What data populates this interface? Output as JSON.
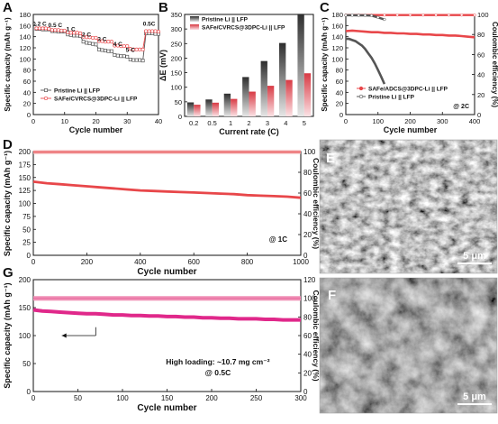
{
  "colors": {
    "pristine": "#555555",
    "safe": "#e8474a",
    "safe_dark": "#c42c2e",
    "magenta": "#e0288a",
    "magenta_light": "#f08fb5",
    "bar_gray_top": "#333333",
    "bar_gray_bottom": "#e4e4e4",
    "bar_pink_top": "#d83a44",
    "bar_pink_bottom": "#fbe0e3"
  },
  "chart_data": [
    {
      "panel": "A",
      "type": "line",
      "xlabel": "Cycle number",
      "ylabel": "Specific capacity (mAh g⁻¹)",
      "xlim": [
        0,
        40
      ],
      "ylim": [
        0,
        180
      ],
      "xticks": [
        0,
        10,
        20,
        30,
        40
      ],
      "yticks": [
        0,
        20,
        40,
        60,
        80,
        100,
        120,
        140,
        160,
        180
      ],
      "rate_labels": [
        {
          "text": "0.2 C",
          "x": 2,
          "y": 160
        },
        {
          "text": "0.5 C",
          "x": 7,
          "y": 157
        },
        {
          "text": "1 C",
          "x": 12,
          "y": 150
        },
        {
          "text": "2 C",
          "x": 17,
          "y": 140
        },
        {
          "text": "3 C",
          "x": 22,
          "y": 132
        },
        {
          "text": "4 C",
          "x": 27,
          "y": 123
        },
        {
          "text": "5 C",
          "x": 31,
          "y": 113
        },
        {
          "text": "0.5C",
          "x": 37,
          "y": 160
        }
      ],
      "legend": "bottom-left",
      "series": [
        {
          "name": "Pristine Li || LFP",
          "color": "#555555",
          "x": [
            1,
            2,
            3,
            4,
            5,
            6,
            7,
            8,
            9,
            10,
            11,
            12,
            13,
            14,
            15,
            16,
            17,
            18,
            19,
            20,
            21,
            22,
            23,
            24,
            25,
            26,
            27,
            28,
            29,
            30,
            31,
            32,
            33,
            34,
            35,
            36,
            37,
            38,
            39,
            40
          ],
          "y": [
            154,
            154,
            153,
            153,
            153,
            150,
            150,
            149,
            149,
            149,
            144,
            143,
            142,
            142,
            141,
            131,
            129,
            128,
            127,
            126,
            117,
            116,
            115,
            114,
            114,
            107,
            106,
            105,
            105,
            104,
            99,
            98,
            98,
            98,
            97,
            146,
            146,
            146,
            145,
            145
          ]
        },
        {
          "name": "SAFe/CVRCS@3DPC-Li || LFP",
          "color": "#e8474a",
          "x": [
            1,
            2,
            3,
            4,
            5,
            6,
            7,
            8,
            9,
            10,
            11,
            12,
            13,
            14,
            15,
            16,
            17,
            18,
            19,
            20,
            21,
            22,
            23,
            24,
            25,
            26,
            27,
            28,
            29,
            30,
            31,
            32,
            33,
            34,
            35,
            36,
            37,
            38,
            39,
            40
          ],
          "y": [
            155,
            155,
            155,
            155,
            154,
            152,
            152,
            152,
            151,
            151,
            148,
            147,
            147,
            147,
            146,
            140,
            139,
            139,
            138,
            138,
            132,
            132,
            131,
            131,
            131,
            124,
            124,
            123,
            123,
            123,
            118,
            117,
            117,
            117,
            117,
            150,
            150,
            150,
            150,
            149
          ]
        }
      ]
    },
    {
      "panel": "B",
      "type": "bar",
      "xlabel": "Current rate (C)",
      "ylabel": "ΔE (mV)",
      "categories": [
        "0.2",
        "0.5",
        "1",
        "2",
        "3",
        "4",
        "5"
      ],
      "ylim": [
        0,
        350
      ],
      "yticks": [
        0,
        50,
        100,
        150,
        200,
        250,
        300,
        350
      ],
      "legend": "top-left",
      "series": [
        {
          "name": "Pristine Li || LFP",
          "values": [
            48,
            58,
            78,
            135,
            190,
            252,
            352
          ]
        },
        {
          "name": "SAFe/CVRCS@3DPC-Li || LFP",
          "values": [
            40,
            47,
            60,
            85,
            105,
            125,
            148
          ]
        }
      ]
    },
    {
      "panel": "C",
      "type": "line",
      "xlabel": "Cycle number",
      "ylabel": "Specific capacity (mAh g⁻¹)",
      "y2label": "Coulombic efficiency (%)",
      "xlim": [
        0,
        400
      ],
      "ylim": [
        0,
        180
      ],
      "y2lim": [
        0,
        100
      ],
      "xticks": [
        0,
        100,
        200,
        300,
        400
      ],
      "yticks": [
        0,
        20,
        40,
        60,
        80,
        100,
        120,
        140,
        160,
        180
      ],
      "y2ticks": [
        0,
        20,
        40,
        60,
        80,
        100
      ],
      "annotation": "@ 2C",
      "legend": "bottom-right",
      "series": [
        {
          "name": "SAFe/ADCS@3DPC-Li || LFP",
          "color": "#e8474a",
          "axis": "left",
          "x": [
            0,
            20,
            40,
            60,
            80,
            100,
            120,
            140,
            160,
            180,
            200,
            220,
            240,
            260,
            280,
            300,
            320,
            340,
            360,
            380,
            400
          ],
          "y": [
            150,
            151,
            150,
            149,
            148,
            148,
            147,
            147,
            146,
            146,
            145,
            145,
            144,
            144,
            143,
            143,
            142,
            142,
            141,
            140,
            139
          ]
        },
        {
          "name": "Pristine Li || LFP",
          "color": "#555555",
          "axis": "left",
          "x": [
            0,
            10,
            20,
            30,
            40,
            50,
            60,
            70,
            80,
            90,
            100,
            110,
            120
          ],
          "y": [
            136,
            136,
            134,
            132,
            128,
            124,
            118,
            110,
            102,
            92,
            80,
            68,
            55
          ]
        },
        {
          "name": "",
          "color": "#e8474a",
          "axis": "right",
          "style": "ce",
          "x": [
            0,
            40,
            80,
            120,
            160,
            200,
            240,
            280,
            320,
            360,
            400
          ],
          "y": [
            99.3,
            99.3,
            99.4,
            99.4,
            99.4,
            99.4,
            99.4,
            99.4,
            99.4,
            99.4,
            99.4
          ]
        },
        {
          "name": "",
          "color": "#555555",
          "axis": "right",
          "style": "ce",
          "x": [
            0,
            20,
            40,
            60,
            80,
            100,
            120
          ],
          "y": [
            99.2,
            99.2,
            99.1,
            99.0,
            98.8,
            97.0,
            95.0
          ]
        }
      ]
    },
    {
      "panel": "D",
      "type": "line",
      "xlabel": "Cycle number",
      "ylabel": "Specific capacity (mAh g⁻¹)",
      "y2label": "Coulombic efficiency (%)",
      "xlim": [
        0,
        1000
      ],
      "ylim": [
        0,
        200
      ],
      "y2lim": [
        0,
        100
      ],
      "xticks": [
        0,
        200,
        400,
        600,
        800,
        1000
      ],
      "yticks": [
        0,
        25,
        50,
        75,
        100,
        125,
        150,
        175,
        200
      ],
      "y2ticks": [
        0,
        20,
        40,
        60,
        80,
        100
      ],
      "annotation": "@ 1C",
      "series": [
        {
          "name": "",
          "color": "#e8474a",
          "axis": "left",
          "x": [
            0,
            50,
            100,
            150,
            200,
            250,
            300,
            350,
            400,
            450,
            500,
            550,
            600,
            650,
            700,
            750,
            800,
            850,
            900,
            950,
            1000
          ],
          "y": [
            142,
            139,
            137,
            135,
            133,
            131,
            129,
            127,
            125,
            124,
            123,
            122,
            121,
            120,
            119,
            118,
            116,
            115,
            114,
            113,
            111
          ]
        },
        {
          "name": "",
          "color": "#e8474a",
          "axis": "right",
          "style": "ce",
          "x": [
            0,
            100,
            200,
            300,
            400,
            500,
            600,
            700,
            800,
            900,
            1000
          ],
          "y": [
            99.5,
            99.6,
            99.6,
            99.6,
            99.6,
            99.6,
            99.6,
            99.6,
            99.6,
            99.6,
            99.6
          ]
        }
      ]
    },
    {
      "panel": "G",
      "type": "line",
      "xlabel": "Cycle number",
      "ylabel": "Specific capacity (mAh g⁻¹)",
      "y2label": "Coulombic efficiency (%)",
      "xlim": [
        0,
        300
      ],
      "ylim": [
        0,
        200
      ],
      "y2lim": [
        0,
        120
      ],
      "xticks": [
        0,
        50,
        100,
        150,
        200,
        250,
        300
      ],
      "yticks": [
        0,
        50,
        100,
        150,
        200
      ],
      "y2ticks": [
        0,
        20,
        40,
        60,
        80,
        100,
        120
      ],
      "annotation_lines": [
        "High loading: ~10.7 mg cm⁻²",
        "@ 0.5C"
      ],
      "series": [
        {
          "name": "",
          "color": "#e0288a",
          "axis": "left",
          "x": [
            0,
            10,
            20,
            30,
            40,
            50,
            60,
            70,
            80,
            90,
            100,
            110,
            120,
            130,
            140,
            150,
            160,
            170,
            180,
            190,
            200,
            210,
            220,
            230,
            240,
            250,
            260,
            270,
            280,
            290,
            300
          ],
          "y": [
            146,
            144,
            143,
            142,
            141,
            140,
            139,
            139,
            138,
            137,
            137,
            136,
            136,
            135,
            135,
            134,
            134,
            133,
            133,
            132,
            132,
            131,
            131,
            130,
            130,
            130,
            129,
            129,
            128,
            128,
            128
          ]
        },
        {
          "name": "",
          "color": "#f08fb5",
          "axis": "right",
          "style": "ce",
          "x": [
            0,
            30,
            60,
            90,
            120,
            150,
            180,
            210,
            240,
            270,
            300
          ],
          "y": [
            100,
            100,
            100,
            100,
            100,
            100,
            100,
            100,
            100,
            100,
            100
          ]
        }
      ]
    }
  ],
  "panels": {
    "A": {
      "letter": "A",
      "xlabel": "Cycle number",
      "ylabel": "Specific capacity (mAh g⁻¹)",
      "legend": [
        "Pristine Li || LFP",
        "SAFe/CVRCS@3DPC-Li || LFP"
      ]
    },
    "B": {
      "letter": "B",
      "xlabel": "Current rate (C)",
      "ylabel": "ΔE (mV)",
      "legend": [
        "Pristine Li || LFP",
        "SAFe/CVRCS@3DPC-Li || LFP"
      ]
    },
    "C": {
      "letter": "C",
      "xlabel": "Cycle number",
      "ylabel": "Specific capacity (mAh g⁻¹)",
      "y2label": "Coulombic efficiency (%)",
      "annotation": "@ 2C",
      "legend": [
        "SAFe/ADCS@3DPC-Li || LFP",
        "Pristine Li || LFP"
      ]
    },
    "D": {
      "letter": "D",
      "xlabel": "Cycle number",
      "ylabel": "Specific capacity (mAh g⁻¹)",
      "y2label": "Coulombic efficiency (%)",
      "annotation": "@ 1C"
    },
    "E": {
      "letter": "E",
      "scalebar": "5 μm"
    },
    "F": {
      "letter": "F",
      "scalebar": "5 μm"
    },
    "G": {
      "letter": "G",
      "xlabel": "Cycle number",
      "ylabel": "Specific capacity (mAh g⁻¹)",
      "y2label": "Coulombic efficiency (%)",
      "annotation": [
        "High loading: ~10.7 mg cm⁻²",
        "@ 0.5C"
      ]
    }
  }
}
